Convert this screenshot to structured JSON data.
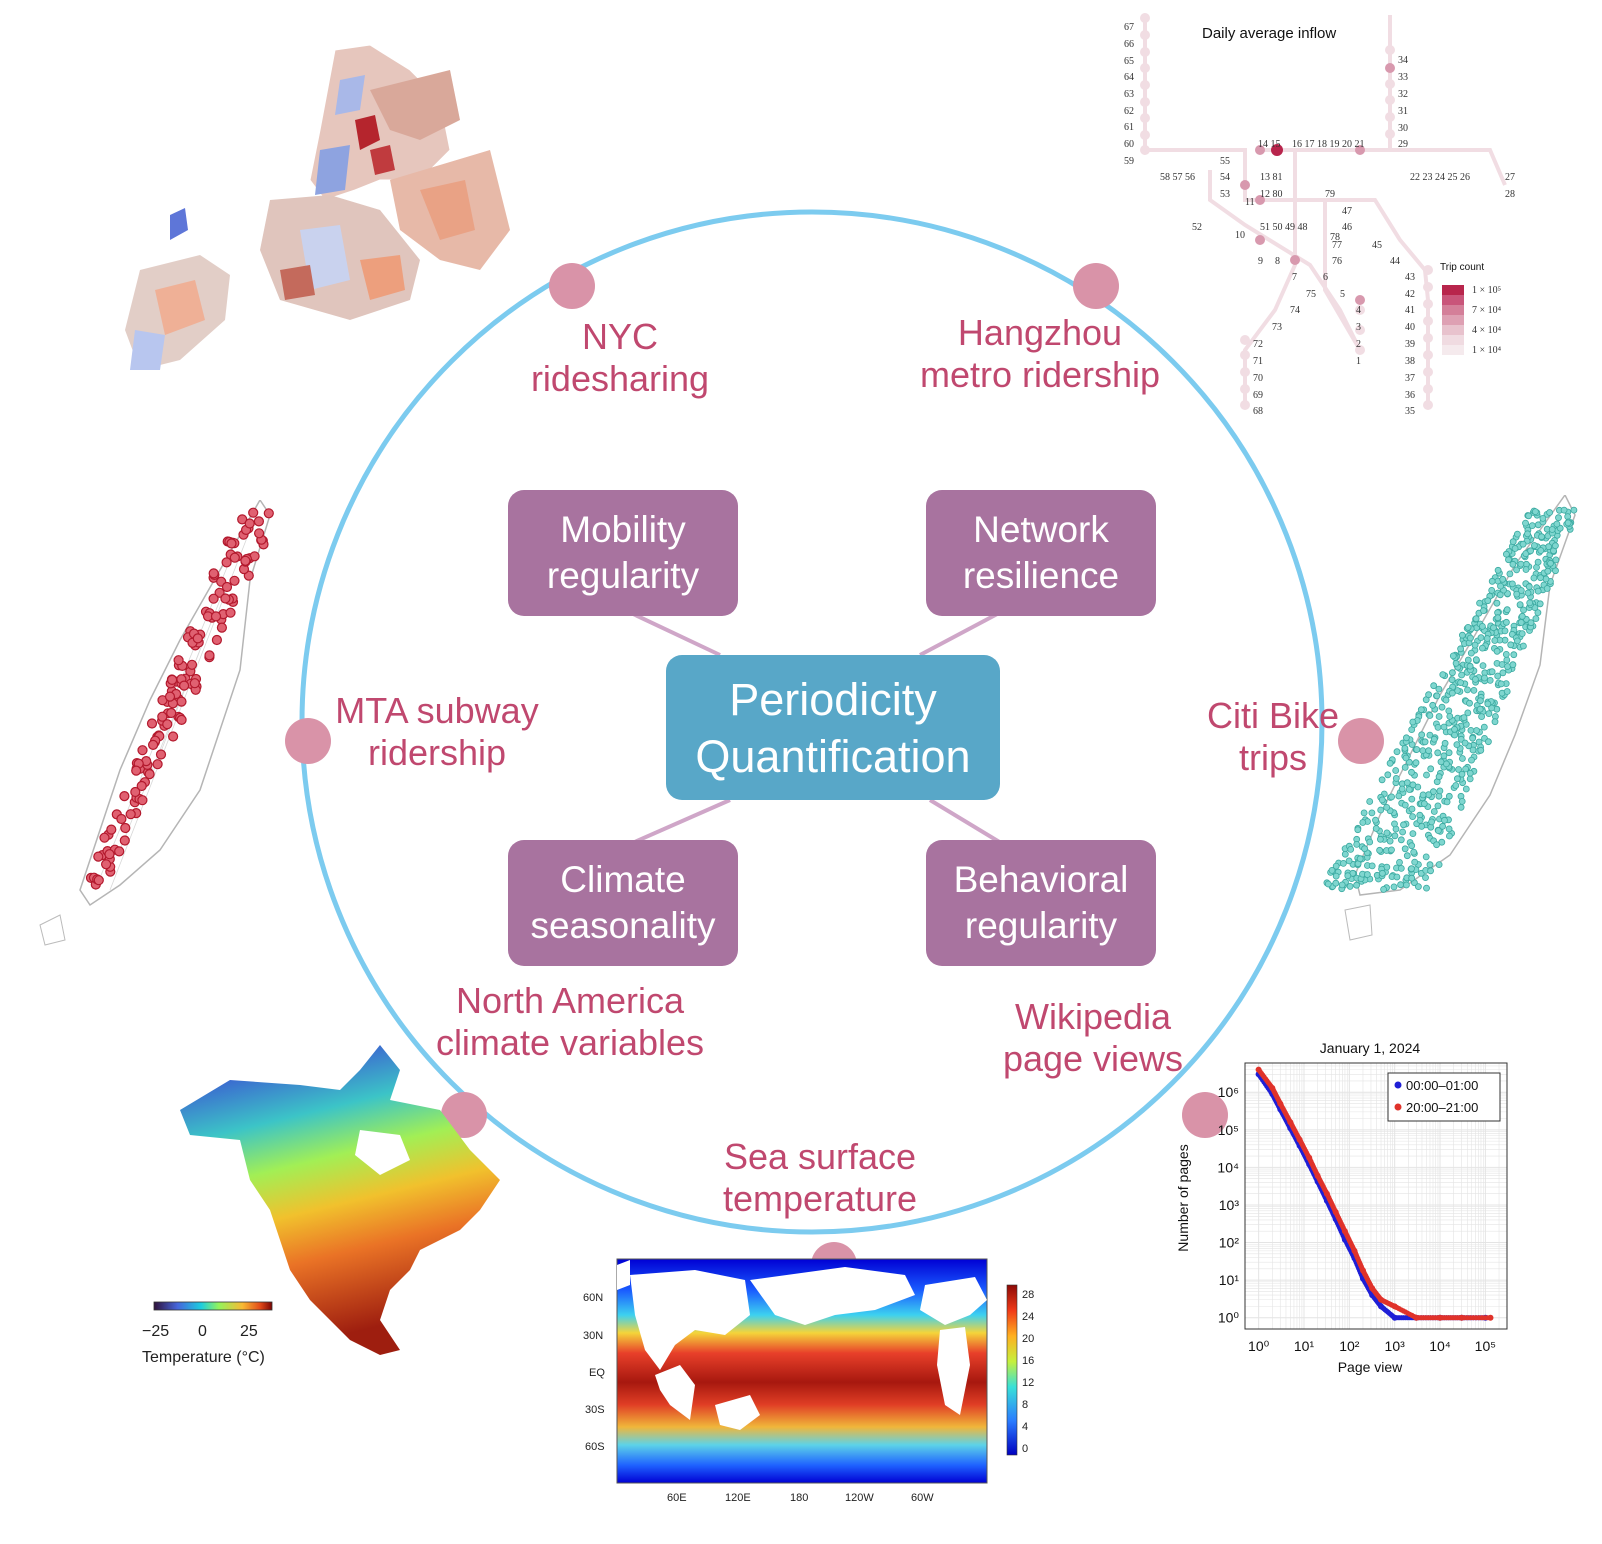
{
  "center": {
    "line1": "Periodicity",
    "line2": "Quantification"
  },
  "themes": {
    "mobility": {
      "line1": "Mobility",
      "line2": "regularity"
    },
    "network": {
      "line1": "Network",
      "line2": "resilience"
    },
    "climate": {
      "line1": "Climate",
      "line2": "seasonality"
    },
    "behavioral": {
      "line1": "Behavioral",
      "line2": "regularity"
    }
  },
  "datasets": {
    "nyc": {
      "line1": "NYC",
      "line2": "ridesharing"
    },
    "hangzhou": {
      "line1": "Hangzhou",
      "line2": "metro ridership"
    },
    "mta": {
      "line1": "MTA subway",
      "line2": "ridership"
    },
    "citibike": {
      "line1": "Citi Bike",
      "line2": "trips"
    },
    "north_america": {
      "line1": "North America",
      "line2": "climate variables"
    },
    "wikipedia": {
      "line1": "Wikipedia",
      "line2": "page views"
    },
    "sst": {
      "line1": "Sea surface",
      "line2": "temperature"
    }
  },
  "colors": {
    "ring": "#7ccbef",
    "dot": "#d993a8",
    "theme_box": "#a8739f",
    "center_box": "#58a7c8",
    "label": "#c0486f"
  },
  "metro_map": {
    "title": "Daily average inflow",
    "legend_title": "Trip count",
    "legend_items": [
      "1 × 10⁵",
      "7 × 10⁴",
      "4 × 10⁴",
      "1 × 10⁴"
    ]
  },
  "na_map": {
    "colorbar_label": "Temperature (°C)",
    "ticks": [
      "−25",
      "0",
      "25"
    ]
  },
  "sst_map": {
    "lat_labels": [
      "60N",
      "30N",
      "EQ",
      "30S",
      "60S"
    ],
    "lon_labels": [
      "60E",
      "120E",
      "180",
      "120W",
      "60W"
    ],
    "colorbar_ticks": [
      "28",
      "24",
      "20",
      "16",
      "12",
      "8",
      "4",
      "0"
    ]
  },
  "chart_data": {
    "type": "scatter",
    "title": "January 1, 2024",
    "xlabel": "Page view",
    "ylabel": "Number of pages",
    "xscale": "log",
    "yscale": "log",
    "xlim": [
      0.5,
      300000
    ],
    "ylim": [
      0.5,
      6000000
    ],
    "x_ticks": [
      "10⁰",
      "10¹",
      "10²",
      "10³",
      "10⁴",
      "10⁵"
    ],
    "y_ticks": [
      "10⁰",
      "10¹",
      "10²",
      "10³",
      "10⁴",
      "10⁵",
      "10⁶"
    ],
    "grid": true,
    "legend_position": "top-right",
    "series": [
      {
        "name": "00:00–01:00",
        "color": "#1f1fd6",
        "x": [
          1,
          2,
          3,
          5,
          8,
          13,
          20,
          32,
          50,
          80,
          130,
          200,
          320,
          500,
          1000,
          3000,
          10000,
          30000,
          100000
        ],
        "y": [
          3000000,
          900000,
          350000,
          110000,
          38000,
          12000,
          4200,
          1300,
          420,
          120,
          38,
          11,
          4,
          2,
          1,
          1,
          1,
          1,
          1
        ]
      },
      {
        "name": "20:00–21:00",
        "color": "#e0322a",
        "x": [
          1,
          2,
          3,
          5,
          8,
          13,
          20,
          32,
          50,
          80,
          130,
          200,
          320,
          500,
          1000,
          3000,
          10000,
          30000,
          130000
        ],
        "y": [
          4000000,
          1300000,
          500000,
          160000,
          55000,
          18000,
          6000,
          2000,
          650,
          200,
          60,
          18,
          6,
          3,
          2,
          1,
          1,
          1,
          1
        ]
      }
    ]
  }
}
